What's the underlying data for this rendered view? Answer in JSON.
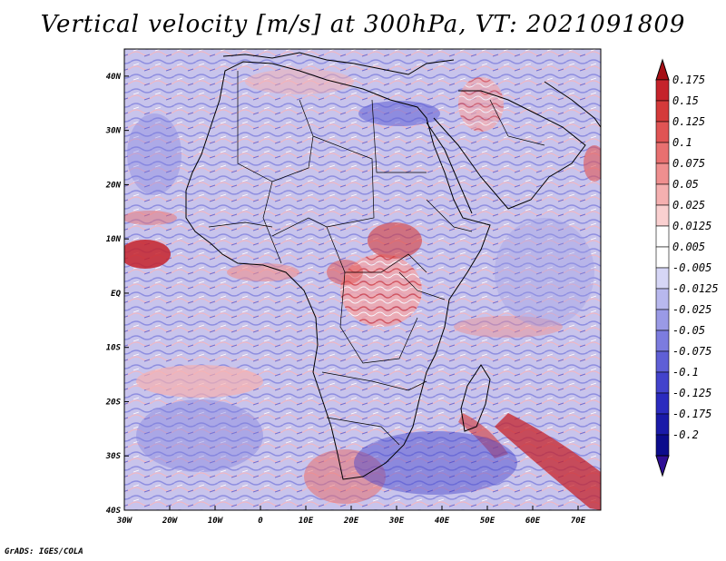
{
  "title": "Vertical velocity [m/s] at 300hPa, VT: 2021091809",
  "credit": "GrADS: IGES/COLA",
  "map": {
    "variable": "Vertical velocity",
    "units": "m/s",
    "level": "300hPa",
    "valid_time": "2021091809",
    "lon_range": [
      -30,
      75
    ],
    "lat_range": [
      -40,
      45
    ],
    "lon_ticks": [
      {
        "value": -30,
        "label": "30W"
      },
      {
        "value": -20,
        "label": "20W"
      },
      {
        "value": -10,
        "label": "10W"
      },
      {
        "value": 0,
        "label": "0"
      },
      {
        "value": 10,
        "label": "10E"
      },
      {
        "value": 20,
        "label": "20E"
      },
      {
        "value": 30,
        "label": "30E"
      },
      {
        "value": 40,
        "label": "40E"
      },
      {
        "value": 50,
        "label": "50E"
      },
      {
        "value": 60,
        "label": "60E"
      },
      {
        "value": 70,
        "label": "70E"
      }
    ],
    "lat_ticks": [
      {
        "value": 40,
        "label": "40N"
      },
      {
        "value": 30,
        "label": "30N"
      },
      {
        "value": 20,
        "label": "20N"
      },
      {
        "value": 10,
        "label": "10N"
      },
      {
        "value": 0,
        "label": "EQ"
      },
      {
        "value": -10,
        "label": "10S"
      },
      {
        "value": -20,
        "label": "20S"
      },
      {
        "value": -30,
        "label": "30S"
      },
      {
        "value": -40,
        "label": "40S"
      }
    ]
  },
  "colorbar": {
    "colors": [
      "#a50f15",
      "#c5232b",
      "#d43a3a",
      "#e05454",
      "#e87070",
      "#ef8f8f",
      "#f5b0b0",
      "#fad0d0",
      "#ffffff",
      "#ffffff",
      "#d6d6f6",
      "#b8b8ee",
      "#9a9ae6",
      "#7c7cdf",
      "#5f5fd6",
      "#4343cc",
      "#2b2bbf",
      "#1a1aa8",
      "#0c0c8c",
      "#2f0f96"
    ],
    "labels": [
      "0.175",
      "0.15",
      "0.125",
      "0.1",
      "0.075",
      "0.05",
      "0.025",
      "0.0125",
      "0.005",
      "-0.005",
      "-0.0125",
      "-0.025",
      "-0.05",
      "-0.075",
      "-0.1",
      "-0.125",
      "-0.175",
      "-0.2"
    ]
  },
  "palette": {
    "background": "#d8c9e6",
    "coast": "#000000"
  }
}
